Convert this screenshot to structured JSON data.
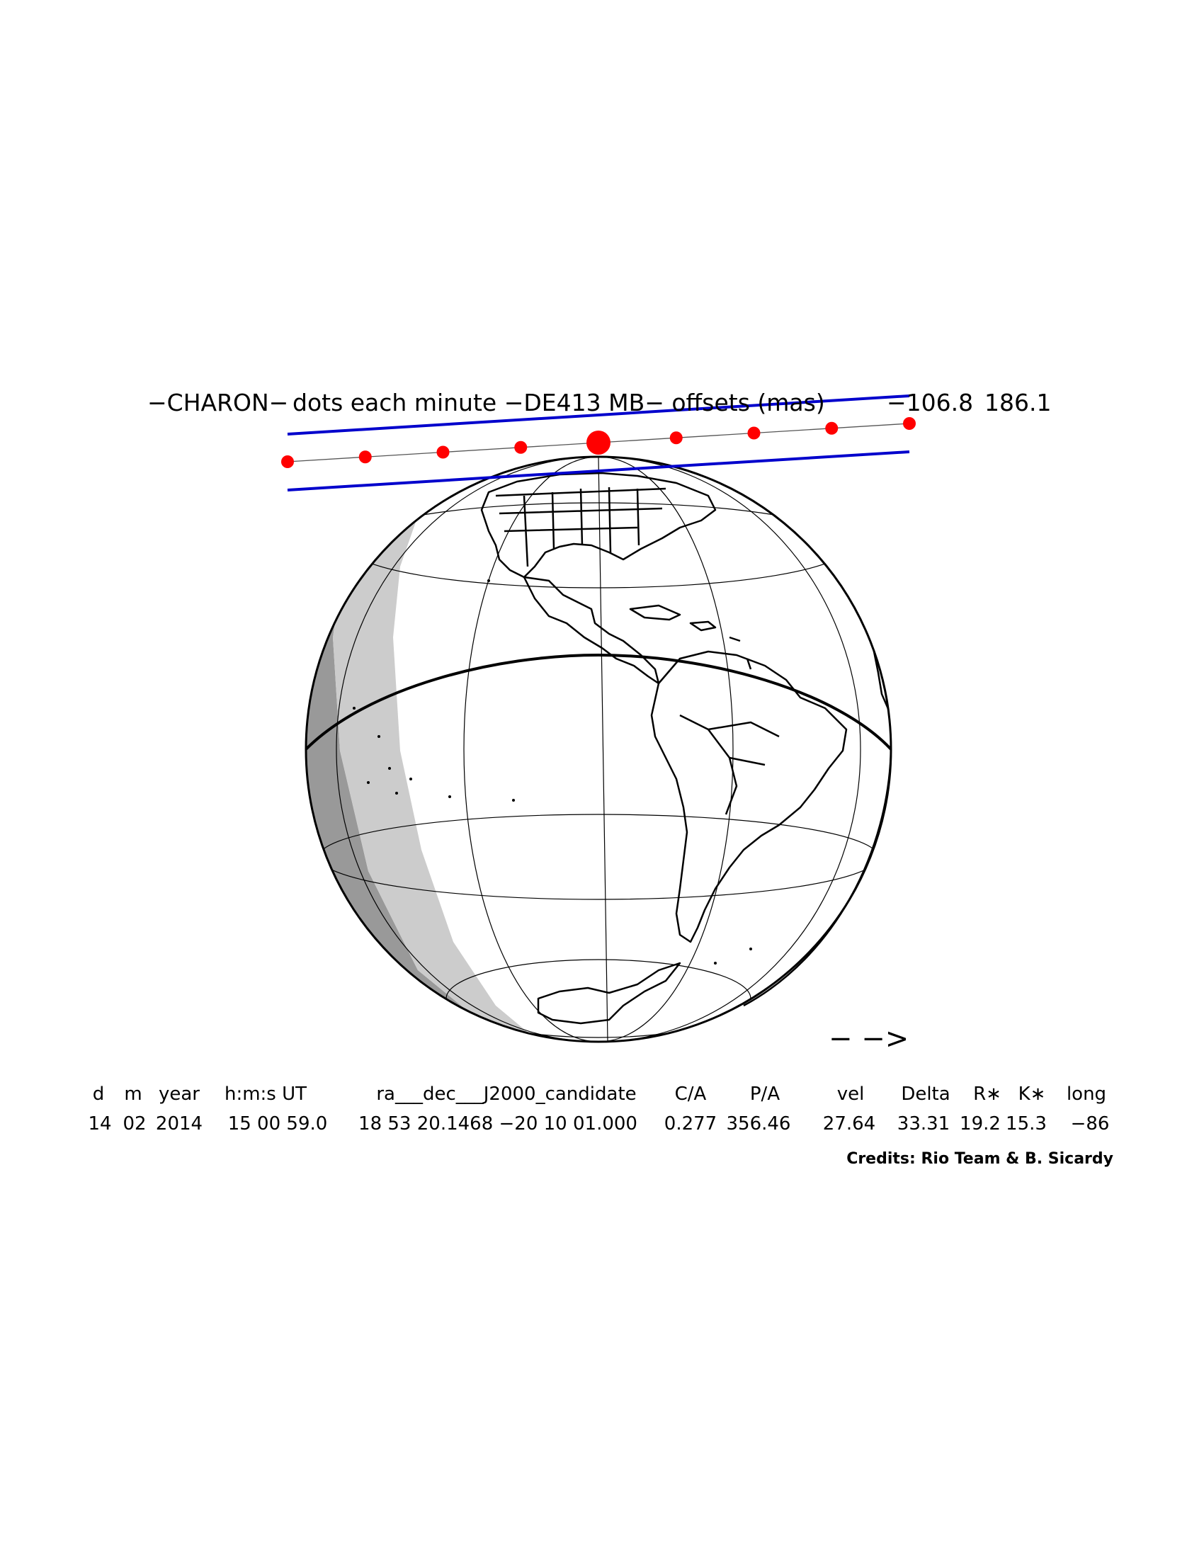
{
  "title": {
    "object": "−CHARON−",
    "caption": "dots each minute −DE413 MB− offsets (mas)",
    "offset_ra": "−106.8",
    "offset_dec": "186.1"
  },
  "direction_arrow": "− −>",
  "table": {
    "headers": [
      "d",
      "m",
      "year",
      "h:m:s UT",
      "ra___dec___J2000_candidate",
      "C/A",
      "P/A",
      "vel",
      "Delta",
      "R∗",
      "K∗",
      "long"
    ],
    "values": [
      "14",
      "02",
      "2014",
      "15 00 59.0",
      "18 53 20.1468 −20 10 01.000",
      "0.277",
      "356.46",
      "27.64",
      "33.31",
      "19.2",
      "15.3",
      "−86"
    ]
  },
  "credits": "Credits: Rio Team & B. Sicardy",
  "colors": {
    "path_dots": "#ff0000",
    "shadow_limits": "#0000cc",
    "night": "#999999",
    "twilight": "#cccccc",
    "land_outline": "#000000"
  }
}
